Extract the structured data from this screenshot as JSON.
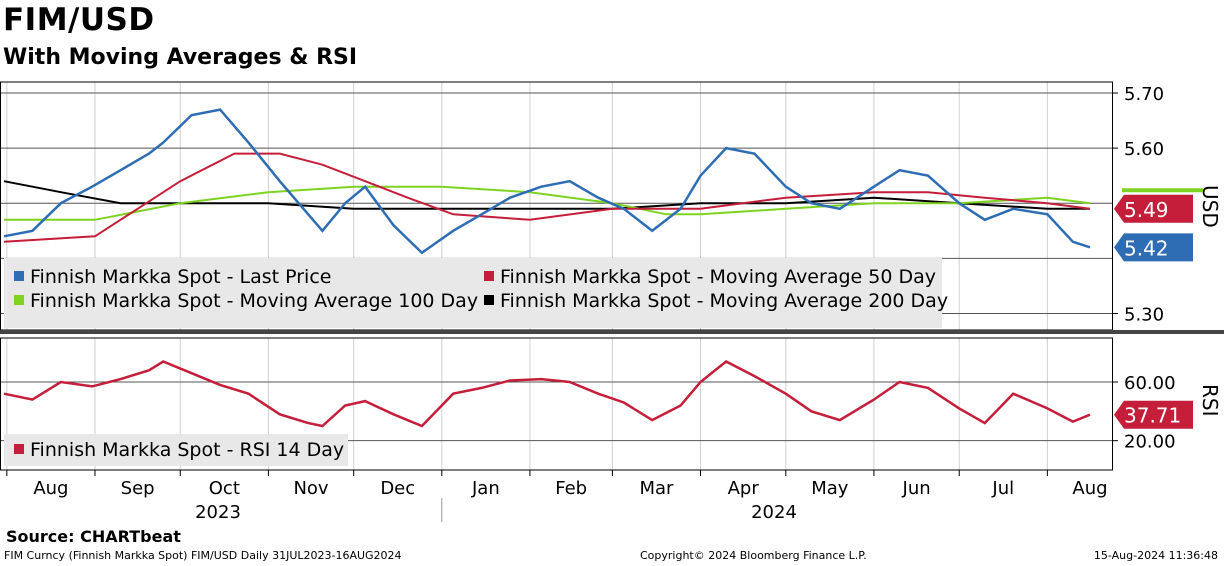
{
  "header": {
    "title": "FIM/USD",
    "subtitle": "With Moving Averages & RSI"
  },
  "footer": {
    "source": "Source: CHARTbeat",
    "left": "FIM Curncy (Finnish Markka Spot) FIM/USD  Daily 31JUL2023-16AUG2024",
    "center": "Copyright© 2024 Bloomberg Finance L.P.",
    "right": "15-Aug-2024 11:36:48"
  },
  "colors": {
    "price": "#2e6db4",
    "ma50": "#c41e3a",
    "ma100": "#7ed321",
    "ma200": "#000000",
    "rsi": "#c41e3a",
    "legend_bg": "#e8e8e8"
  },
  "chart_data": [
    {
      "type": "line",
      "panel": "price",
      "axis_label": "USD",
      "ylim": [
        5.27,
        5.72
      ],
      "yticks": [
        "5.70",
        "5.60",
        "5.30"
      ],
      "x_axis": {
        "months": [
          "Aug",
          "Sep",
          "Oct",
          "Nov",
          "Dec",
          "Jan",
          "Feb",
          "Mar",
          "Apr",
          "May",
          "Jun",
          "Jul",
          "Aug"
        ],
        "years": [
          "2023",
          "2024"
        ]
      },
      "legend": [
        {
          "label": "Finnish Markka Spot - Last Price",
          "color": "#2e6db4"
        },
        {
          "label": "Finnish Markka Spot - Moving Average 50 Day",
          "color": "#c41e3a"
        },
        {
          "label": "Finnish Markka Spot - Moving Average 100 Day",
          "color": "#7ed321"
        },
        {
          "label": "Finnish Markka Spot - Moving Average 200 Day",
          "color": "#000000"
        }
      ],
      "last_values": [
        {
          "label": "5.49",
          "value": 5.49,
          "color": "#c41e3a"
        },
        {
          "label": "5.42",
          "value": 5.42,
          "color": "#2e6db4"
        }
      ],
      "series": [
        {
          "name": "Finnish Markka Spot - Last Price",
          "x": [
            "2023-07-31",
            "2023-08-10",
            "2023-08-20",
            "2023-08-31",
            "2023-09-10",
            "2023-09-20",
            "2023-09-25",
            "2023-10-05",
            "2023-10-15",
            "2023-10-25",
            "2023-11-05",
            "2023-11-15",
            "2023-11-20",
            "2023-11-28",
            "2023-12-05",
            "2023-12-15",
            "2023-12-25",
            "2024-01-05",
            "2024-01-15",
            "2024-01-25",
            "2024-02-05",
            "2024-02-15",
            "2024-02-25",
            "2024-03-05",
            "2024-03-15",
            "2024-03-25",
            "2024-04-01",
            "2024-04-10",
            "2024-04-20",
            "2024-05-01",
            "2024-05-10",
            "2024-05-20",
            "2024-06-01",
            "2024-06-10",
            "2024-06-20",
            "2024-07-01",
            "2024-07-10",
            "2024-07-20",
            "2024-08-01",
            "2024-08-10",
            "2024-08-16"
          ],
          "values": [
            5.44,
            5.45,
            5.5,
            5.53,
            5.56,
            5.59,
            5.61,
            5.66,
            5.67,
            5.61,
            5.54,
            5.48,
            5.45,
            5.5,
            5.53,
            5.46,
            5.41,
            5.45,
            5.48,
            5.51,
            5.53,
            5.54,
            5.51,
            5.49,
            5.45,
            5.49,
            5.55,
            5.6,
            5.59,
            5.53,
            5.5,
            5.49,
            5.53,
            5.56,
            5.55,
            5.5,
            5.47,
            5.49,
            5.48,
            5.43,
            5.42
          ]
        },
        {
          "name": "Finnish Markka Spot - Moving Average 50 Day",
          "x": [
            "2023-07-31",
            "2023-09-01",
            "2023-10-01",
            "2023-10-20",
            "2023-11-05",
            "2023-11-20",
            "2023-12-05",
            "2023-12-20",
            "2024-01-05",
            "2024-02-01",
            "2024-03-01",
            "2024-04-01",
            "2024-05-01",
            "2024-06-01",
            "2024-06-20",
            "2024-07-10",
            "2024-08-01",
            "2024-08-16"
          ],
          "values": [
            5.43,
            5.44,
            5.54,
            5.59,
            5.59,
            5.57,
            5.54,
            5.51,
            5.48,
            5.47,
            5.49,
            5.49,
            5.51,
            5.52,
            5.52,
            5.51,
            5.5,
            5.49
          ]
        },
        {
          "name": "Finnish Markka Spot - Moving Average 100 Day",
          "x": [
            "2023-07-31",
            "2023-09-01",
            "2023-10-01",
            "2023-11-01",
            "2023-12-01",
            "2024-01-01",
            "2024-02-01",
            "2024-03-01",
            "2024-03-20",
            "2024-04-01",
            "2024-05-01",
            "2024-06-01",
            "2024-07-01",
            "2024-08-01",
            "2024-08-16"
          ],
          "values": [
            5.47,
            5.47,
            5.5,
            5.52,
            5.53,
            5.53,
            5.52,
            5.5,
            5.48,
            5.48,
            5.49,
            5.5,
            5.5,
            5.51,
            5.5
          ]
        },
        {
          "name": "Finnish Markka Spot - Moving Average 200 Day",
          "x": [
            "2023-07-31",
            "2023-08-20",
            "2023-09-10",
            "2023-10-01",
            "2023-11-01",
            "2023-12-01",
            "2024-01-01",
            "2024-02-01",
            "2024-03-01",
            "2024-04-01",
            "2024-05-01",
            "2024-06-01",
            "2024-07-01",
            "2024-08-01",
            "2024-08-16"
          ],
          "values": [
            5.54,
            5.52,
            5.5,
            5.5,
            5.5,
            5.49,
            5.49,
            5.49,
            5.49,
            5.5,
            5.5,
            5.51,
            5.5,
            5.49,
            5.49
          ]
        }
      ]
    },
    {
      "type": "line",
      "panel": "rsi",
      "axis_label": "RSI",
      "ylim": [
        0,
        90
      ],
      "yticks": [
        "60.00",
        "20.00"
      ],
      "legend": [
        {
          "label": "Finnish Markka Spot - RSI 14 Day",
          "color": "#c41e3a"
        }
      ],
      "last_values": [
        {
          "label": "37.71",
          "value": 37.71,
          "color": "#c41e3a"
        }
      ],
      "series": [
        {
          "name": "Finnish Markka Spot - RSI 14 Day",
          "x": [
            "2023-07-31",
            "2023-08-10",
            "2023-08-20",
            "2023-08-31",
            "2023-09-10",
            "2023-09-20",
            "2023-09-25",
            "2023-10-05",
            "2023-10-15",
            "2023-10-25",
            "2023-11-05",
            "2023-11-15",
            "2023-11-20",
            "2023-11-28",
            "2023-12-05",
            "2023-12-15",
            "2023-12-25",
            "2024-01-05",
            "2024-01-15",
            "2024-01-25",
            "2024-02-05",
            "2024-02-15",
            "2024-02-25",
            "2024-03-05",
            "2024-03-15",
            "2024-03-25",
            "2024-04-01",
            "2024-04-10",
            "2024-04-20",
            "2024-05-01",
            "2024-05-10",
            "2024-05-20",
            "2024-06-01",
            "2024-06-10",
            "2024-06-20",
            "2024-07-01",
            "2024-07-10",
            "2024-07-20",
            "2024-08-01",
            "2024-08-10",
            "2024-08-16"
          ],
          "values": [
            52,
            48,
            60,
            57,
            62,
            68,
            74,
            66,
            58,
            52,
            38,
            32,
            30,
            44,
            47,
            38,
            30,
            52,
            56,
            61,
            62,
            60,
            52,
            46,
            34,
            44,
            60,
            74,
            64,
            52,
            40,
            34,
            48,
            60,
            56,
            42,
            32,
            52,
            42,
            33,
            37.71
          ]
        }
      ]
    }
  ]
}
